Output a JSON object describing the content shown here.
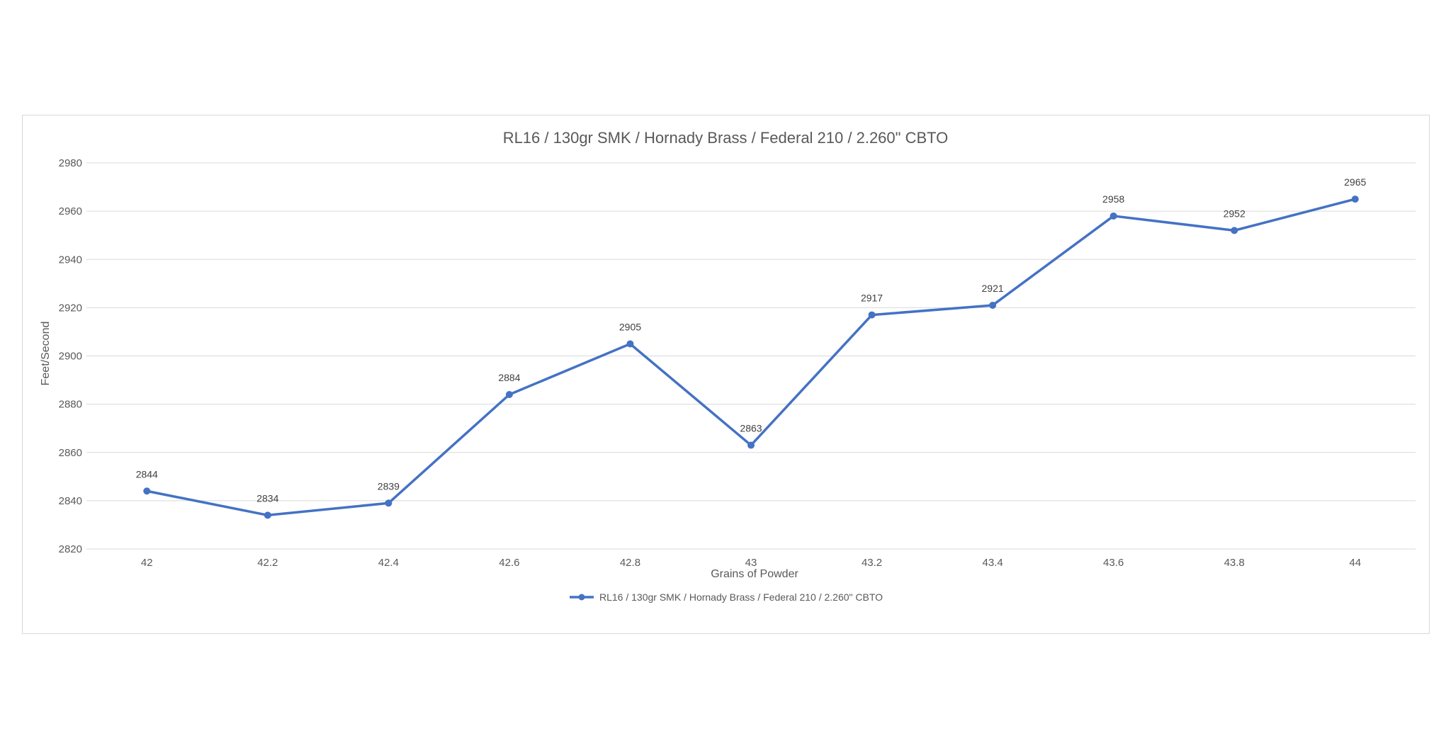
{
  "chart_data": {
    "type": "line",
    "title": "RL16 / 130gr SMK / Hornady Brass / Federal 210 / 2.260\" CBTO",
    "xlabel": "Grains of Powder",
    "ylabel": "Feet/Second",
    "categories": [
      "42",
      "42.2",
      "42.4",
      "42.6",
      "42.8",
      "43",
      "43.2",
      "43.4",
      "43.6",
      "43.8",
      "44"
    ],
    "series": [
      {
        "name": "RL16 / 130gr SMK / Hornady Brass / Federal 210 / 2.260\" CBTO",
        "values": [
          2844,
          2834,
          2839,
          2884,
          2905,
          2863,
          2917,
          2921,
          2958,
          2952,
          2965
        ],
        "color": "#4472c4"
      }
    ],
    "ylim": [
      2820,
      2980
    ],
    "yticks": [
      2820,
      2840,
      2860,
      2880,
      2900,
      2920,
      2940,
      2960,
      2980
    ],
    "grid": true,
    "legend_position": "bottom",
    "data_labels": true
  }
}
